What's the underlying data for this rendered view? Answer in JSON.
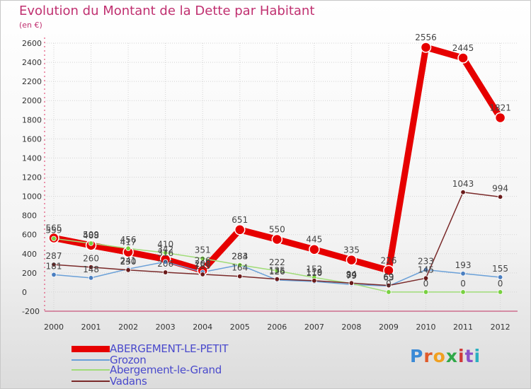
{
  "header": {
    "title": "Evolution du Montant de la Dette par Habitant",
    "unit": "(en €)"
  },
  "logo": {
    "text": "Proxiti",
    "colors": [
      "#3a8ad6",
      "#e05a2a",
      "#f0a020",
      "#30a848",
      "#d03a3a",
      "#8a50c8",
      "#2ab0c0"
    ]
  },
  "chart_data": {
    "type": "line",
    "x": [
      "2000",
      "2001",
      "2002",
      "2003",
      "2004",
      "2005",
      "2006",
      "2007",
      "2008",
      "2009",
      "2010",
      "2011",
      "2012"
    ],
    "ylim": [
      -200,
      2600
    ],
    "yticks": [
      -200,
      0,
      200,
      400,
      600,
      800,
      1000,
      1200,
      1400,
      1600,
      1800,
      2000,
      2200,
      2400,
      2600
    ],
    "grid": true,
    "legend_position": "bottom-left",
    "series": [
      {
        "name": "ABERGEMENT-LE-PETIT",
        "color": "#e60000",
        "marker_color": "#e60000",
        "values": [
          565,
          488,
          417,
          342,
          226,
          651,
          550,
          445,
          335,
          226,
          2556,
          2445,
          1821
        ],
        "labels": [
          "565",
          "488",
          "417",
          "342",
          "226",
          "651",
          "550",
          "445",
          "335",
          "226",
          "2556",
          "2445",
          "1821"
        ]
      },
      {
        "name": "Grozon",
        "color": "#6aa0d8",
        "marker_color": "#4a7ec0",
        "values": [
          181,
          148,
          241,
          316,
          208,
          284,
          126,
          110,
          79,
          63,
          233,
          193,
          155
        ],
        "labels": [
          "181",
          "148",
          "241",
          "316",
          "208",
          "284",
          "126",
          "110",
          "79",
          "63",
          "233",
          "193",
          "155"
        ]
      },
      {
        "name": "Abergement-le-Grand",
        "color": "#a0dc78",
        "marker_color": "#78d040",
        "values": [
          559,
          509,
          456,
          410,
          351,
          283,
          222,
          152,
          89,
          0,
          0,
          0,
          0
        ],
        "labels": [
          "559",
          "509",
          "456",
          "410",
          "351",
          "283",
          "222",
          "152",
          "89",
          "0",
          "0",
          "0",
          "0"
        ]
      },
      {
        "name": "Vadans",
        "color": "#7a2a2a",
        "marker_color": "#6a1a1a",
        "values": [
          287,
          260,
          230,
          206,
          185,
          164,
          135,
          119,
          94,
          69,
          145,
          1043,
          994
        ],
        "labels": [
          "287",
          "260",
          "230",
          "206",
          "185",
          "164",
          "135",
          "119",
          "94",
          "69",
          "145",
          "1043",
          "994"
        ]
      }
    ]
  }
}
